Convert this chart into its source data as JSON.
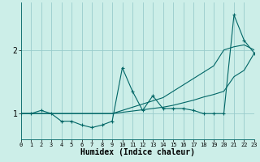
{
  "xlabel": "Humidex (Indice chaleur)",
  "ylabel": "",
  "bg_color": "#cceee8",
  "line_color": "#006666",
  "grid_color": "#99cccc",
  "x": [
    0,
    1,
    2,
    3,
    4,
    5,
    6,
    7,
    8,
    9,
    10,
    11,
    12,
    13,
    14,
    15,
    16,
    17,
    18,
    19,
    20,
    21,
    22,
    23
  ],
  "y_main": [
    1.0,
    1.0,
    1.05,
    1.0,
    0.88,
    0.88,
    0.82,
    0.78,
    0.82,
    0.88,
    1.72,
    1.35,
    1.05,
    1.28,
    1.08,
    1.08,
    1.08,
    1.05,
    1.0,
    1.0,
    1.0,
    2.55,
    2.15,
    1.95
  ],
  "y_upper": [
    1.0,
    1.0,
    1.0,
    1.0,
    1.0,
    1.0,
    1.0,
    1.0,
    1.0,
    1.0,
    1.05,
    1.1,
    1.15,
    1.2,
    1.25,
    1.35,
    1.45,
    1.55,
    1.65,
    1.75,
    2.0,
    2.05,
    2.08,
    2.0
  ],
  "y_lower": [
    1.0,
    1.0,
    1.0,
    1.0,
    1.0,
    1.0,
    1.0,
    1.0,
    1.0,
    1.0,
    1.02,
    1.04,
    1.06,
    1.08,
    1.1,
    1.13,
    1.17,
    1.21,
    1.26,
    1.3,
    1.35,
    1.58,
    1.68,
    1.95
  ],
  "xlim": [
    0,
    23
  ],
  "ylim": [
    0.6,
    2.75
  ],
  "yticks": [
    1.0,
    2.0
  ],
  "xticks": [
    0,
    1,
    2,
    3,
    4,
    5,
    6,
    7,
    8,
    9,
    10,
    11,
    12,
    13,
    14,
    15,
    16,
    17,
    18,
    19,
    20,
    21,
    22,
    23
  ],
  "figsize": [
    3.2,
    2.0
  ],
  "dpi": 100
}
